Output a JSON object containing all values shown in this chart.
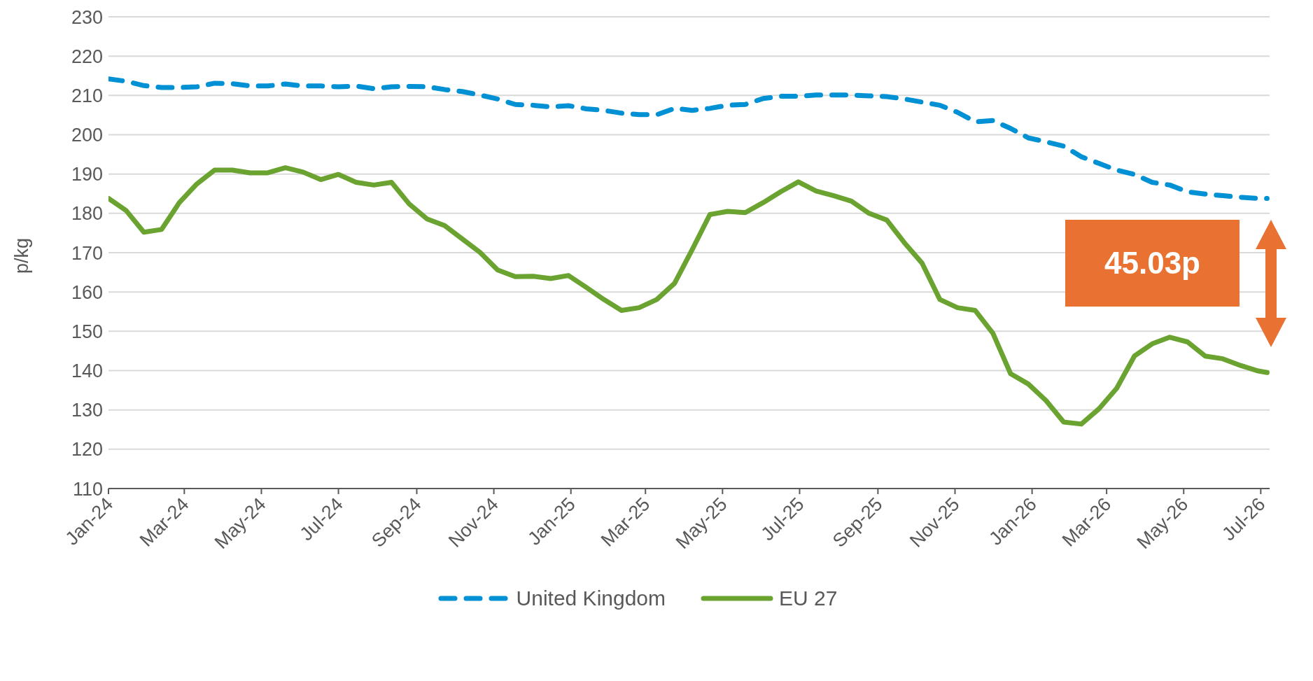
{
  "chart_data": {
    "type": "line",
    "ylabel": "p/kg",
    "x": [
      "2024-01-01",
      "2024-01-15",
      "2024-01-29",
      "2024-02-12",
      "2024-02-26",
      "2024-03-11",
      "2024-03-25",
      "2024-04-08",
      "2024-04-22",
      "2024-05-06",
      "2024-05-20",
      "2024-06-03",
      "2024-06-17",
      "2024-07-01",
      "2024-07-15",
      "2024-07-29",
      "2024-08-12",
      "2024-08-26",
      "2024-09-09",
      "2024-09-23",
      "2024-10-07",
      "2024-10-21",
      "2024-11-04",
      "2024-11-18",
      "2024-12-02",
      "2024-12-16",
      "2024-12-30",
      "2025-01-13",
      "2025-01-27",
      "2025-02-10",
      "2025-02-24",
      "2025-03-10",
      "2025-03-24",
      "2025-04-07",
      "2025-04-21",
      "2025-05-05",
      "2025-05-19",
      "2025-06-02",
      "2025-06-16",
      "2025-06-30",
      "2025-07-14",
      "2025-07-28",
      "2025-08-11",
      "2025-08-25",
      "2025-09-08",
      "2025-09-22",
      "2025-10-06",
      "2025-10-20",
      "2025-11-03",
      "2025-11-17",
      "2025-12-01",
      "2025-12-15",
      "2025-12-29",
      "2026-01-12",
      "2026-01-26",
      "2026-02-09",
      "2026-02-23",
      "2026-03-09",
      "2026-03-23",
      "2026-04-06",
      "2026-04-20",
      "2026-05-04",
      "2026-05-18",
      "2026-06-01",
      "2026-06-15",
      "2026-06-29",
      "2026-07-06"
    ],
    "series": [
      {
        "name": "United Kingdom",
        "color": "#0090d4",
        "line_style": "dashed",
        "values": [
          214.2,
          213.6,
          212.5,
          212.0,
          212.0,
          212.2,
          213.1,
          213.0,
          212.4,
          212.4,
          212.9,
          212.4,
          212.4,
          212.2,
          212.4,
          211.7,
          212.2,
          212.3,
          212.2,
          211.5,
          211.0,
          210.1,
          209.1,
          207.7,
          207.5,
          207.1,
          207.4,
          206.6,
          206.2,
          205.5,
          205.1,
          205.1,
          206.7,
          206.2,
          206.7,
          207.5,
          207.7,
          209.2,
          209.8,
          209.8,
          210.1,
          210.1,
          210.1,
          209.9,
          209.7,
          209.1,
          208.3,
          207.5,
          205.7,
          203.3,
          203.6,
          201.6,
          199.2,
          198.2,
          197.1,
          194.4,
          192.7,
          191.0,
          189.9,
          187.9,
          187.2,
          185.5,
          184.9,
          184.5,
          184.1,
          183.8,
          183.8
        ]
      },
      {
        "name": "EU 27",
        "color": "#6ba331",
        "line_style": "solid",
        "values": [
          183.8,
          180.7,
          175.2,
          175.9,
          182.7,
          187.5,
          191.0,
          191.0,
          190.3,
          190.3,
          191.6,
          190.5,
          188.6,
          189.9,
          187.9,
          187.2,
          187.9,
          182.4,
          178.6,
          176.9,
          173.5,
          170.1,
          165.6,
          163.9,
          164.0,
          163.4,
          164.2,
          161.2,
          158.1,
          155.3,
          156.0,
          158.1,
          162.2,
          170.8,
          179.7,
          180.5,
          180.2,
          182.7,
          185.5,
          188.0,
          185.7,
          184.5,
          183.1,
          180.0,
          178.3,
          172.5,
          167.3,
          158.1,
          156.0,
          155.3,
          149.5,
          139.2,
          136.6,
          132.4,
          126.9,
          126.4,
          130.3,
          135.5,
          143.7,
          146.8,
          148.5,
          147.3,
          143.7,
          143.0,
          141.3,
          139.9,
          139.5
        ]
      }
    ],
    "xlim": [
      "2024-01-01",
      "2026-07-08"
    ],
    "xticks": [
      {
        "value": "2024-01-01",
        "label": "Jan-24"
      },
      {
        "value": "2024-03-01",
        "label": "Mar-24"
      },
      {
        "value": "2024-05-01",
        "label": "May-24"
      },
      {
        "value": "2024-07-01",
        "label": "Jul-24"
      },
      {
        "value": "2024-09-01",
        "label": "Sep-24"
      },
      {
        "value": "2024-11-01",
        "label": "Nov-24"
      },
      {
        "value": "2025-01-01",
        "label": "Jan-25"
      },
      {
        "value": "2025-03-01",
        "label": "Mar-25"
      },
      {
        "value": "2025-05-01",
        "label": "May-25"
      },
      {
        "value": "2025-07-01",
        "label": "Jul-25"
      },
      {
        "value": "2025-09-01",
        "label": "Sep-25"
      },
      {
        "value": "2025-11-01",
        "label": "Nov-25"
      },
      {
        "value": "2026-01-01",
        "label": "Jan-26"
      },
      {
        "value": "2026-03-01",
        "label": "Mar-26"
      },
      {
        "value": "2026-05-01",
        "label": "May-26"
      },
      {
        "value": "2026-07-01",
        "label": "Jul-26"
      }
    ],
    "ylim": [
      110,
      230
    ],
    "yticks": [
      110,
      120,
      130,
      140,
      150,
      160,
      170,
      180,
      190,
      200,
      210,
      220,
      230
    ],
    "grid": "y",
    "legend": "bottom",
    "marker": "none",
    "annotations": [
      "45.03p"
    ]
  }
}
